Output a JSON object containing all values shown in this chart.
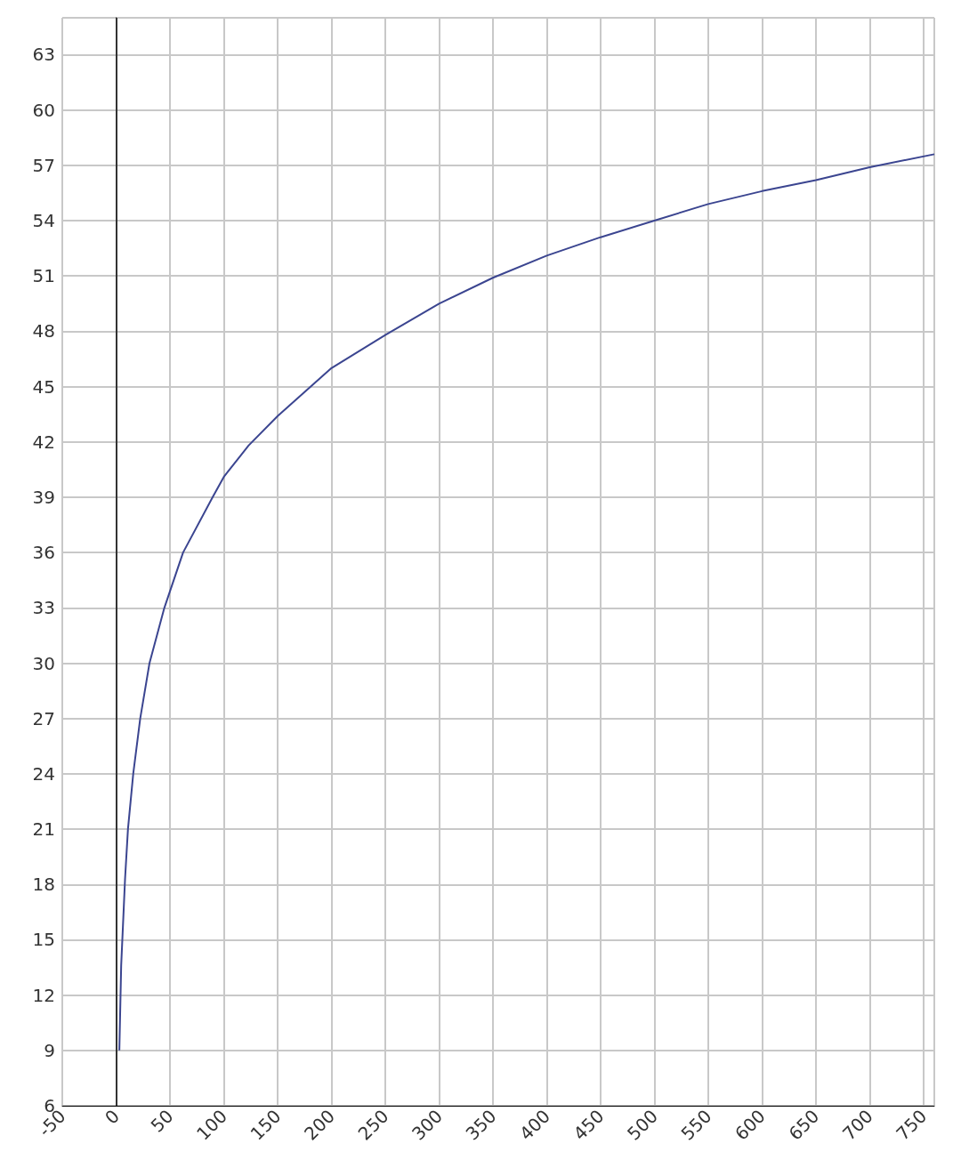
{
  "chart_data": {
    "type": "line",
    "x": [
      3,
      4.7,
      8.3,
      11,
      15.9,
      22.4,
      31,
      44.8,
      62.2,
      89.6,
      100,
      123,
      150,
      200,
      250,
      300,
      350,
      400,
      450,
      500,
      550,
      600,
      650,
      700,
      760
    ],
    "series": [
      {
        "color": "#3b4590",
        "values": [
          9,
          13.6,
          18.3,
          21,
          24,
          27,
          30,
          33,
          36,
          39,
          40.1,
          41.8,
          43.4,
          46,
          47.8,
          49.5,
          50.9,
          52.1,
          53.1,
          54,
          54.9,
          55.6,
          56.2,
          56.9,
          57.6
        ]
      }
    ],
    "xlim": [
      -50,
      760
    ],
    "xticks": [
      -50,
      0,
      50,
      100,
      150,
      200,
      250,
      300,
      350,
      400,
      450,
      500,
      550,
      600,
      650,
      700,
      750
    ],
    "ylim": [
      6,
      65
    ],
    "yticks": [
      6,
      9,
      12,
      15,
      18,
      21,
      24,
      27,
      30,
      33,
      36,
      39,
      42,
      45,
      48,
      51,
      54,
      57,
      60,
      63
    ],
    "ref_lines": [
      {
        "axis": "x",
        "value": 0,
        "color": "#333333"
      }
    ],
    "grid": true,
    "marker": "none",
    "line_style": "solid"
  }
}
